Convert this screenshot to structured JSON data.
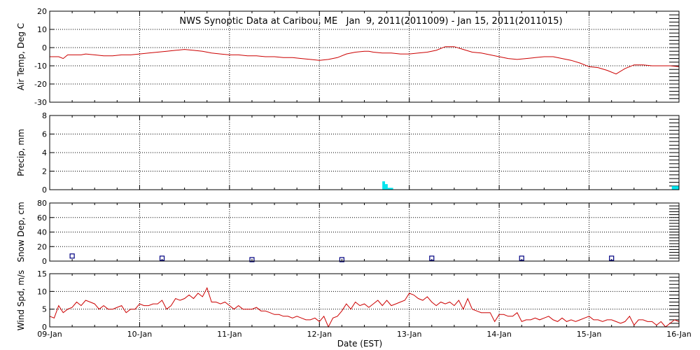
{
  "chart_data": {
    "type": "line",
    "title": "NWS Synoptic Data at Caribou, ME   Jan  9, 2011(2011009) - Jan 15, 2011(2011015)",
    "xlabel": "Date (EST)",
    "x_ticks": [
      "09-Jan",
      "10-Jan",
      "11-Jan",
      "12-Jan",
      "13-Jan",
      "14-Jan",
      "15-Jan",
      "16-Jan"
    ],
    "x_range_days": [
      0,
      7
    ],
    "grid": "dotted",
    "colors": {
      "line": "#cc0000",
      "precip": "#00e5ee",
      "snow": "#000080",
      "axes": "#000000"
    },
    "panels": [
      {
        "ylabel": "Air Temp, Deg C",
        "ylim": [
          -30,
          20
        ],
        "yticks": [
          "20",
          "10",
          "0",
          "-10",
          "-20",
          "-30"
        ],
        "kind": "line",
        "series": {
          "x": [
            0,
            0.1,
            0.15,
            0.2,
            0.25,
            0.3,
            0.35,
            0.4,
            0.5,
            0.6,
            0.7,
            0.8,
            0.9,
            1.0,
            1.1,
            1.2,
            1.3,
            1.4,
            1.5,
            1.6,
            1.7,
            1.75,
            1.8,
            1.9,
            2.0,
            2.1,
            2.2,
            2.3,
            2.4,
            2.5,
            2.6,
            2.7,
            2.8,
            2.9,
            3.0,
            3.1,
            3.2,
            3.3,
            3.4,
            3.5,
            3.55,
            3.6,
            3.7,
            3.8,
            3.9,
            4.0,
            4.1,
            4.2,
            4.3,
            4.4,
            4.5,
            4.6,
            4.7,
            4.8,
            4.9,
            5.0,
            5.1,
            5.2,
            5.3,
            5.4,
            5.5,
            5.6,
            5.7,
            5.8,
            5.9,
            6.0,
            6.1,
            6.2,
            6.3,
            6.4,
            6.5,
            6.6,
            6.7,
            6.8,
            6.9,
            7.0
          ],
          "values": [
            -5,
            -5,
            -6,
            -4,
            -4,
            -4,
            -4,
            -3.5,
            -4,
            -4.5,
            -4.5,
            -4,
            -4,
            -3.5,
            -3,
            -2.5,
            -2,
            -1.5,
            -1,
            -1.5,
            -2,
            -2.5,
            -3,
            -3.5,
            -4,
            -4,
            -4.5,
            -4.5,
            -5,
            -5,
            -5.5,
            -5.5,
            -6,
            -6.5,
            -7,
            -6.5,
            -5.5,
            -3.5,
            -2.5,
            -2,
            -2,
            -2.5,
            -3,
            -3,
            -3.5,
            -3.5,
            -3,
            -2.5,
            -1.5,
            0.5,
            0.5,
            -1,
            -2.5,
            -3,
            -4,
            -5,
            -6,
            -6.5,
            -6,
            -5.5,
            -5,
            -5,
            -6,
            -7,
            -8.5,
            -10.5,
            -11,
            -12.5,
            -14.5,
            -11.5,
            -9.5,
            -9.5,
            -10,
            -10,
            -10,
            -10.5
          ]
        }
      },
      {
        "ylabel": "Precip, mm",
        "ylim": [
          0,
          8
        ],
        "yticks": [
          "8",
          "6",
          "4",
          "2",
          "0"
        ],
        "kind": "bar",
        "bars": [
          {
            "x0": 3.7,
            "x1": 3.73,
            "value": 0.9
          },
          {
            "x0": 3.73,
            "x1": 3.76,
            "value": 0.6
          },
          {
            "x0": 3.76,
            "x1": 3.82,
            "value": 0.2
          },
          {
            "x0": 6.92,
            "x1": 7.0,
            "value": 0.4
          }
        ]
      },
      {
        "ylabel": "Snow Dep, cm",
        "ylim": [
          0,
          80
        ],
        "yticks": [
          "80",
          "60",
          "40",
          "20",
          "0"
        ],
        "kind": "scatter",
        "series": {
          "x": [
            0.25,
            1.25,
            2.25,
            3.25,
            4.25,
            5.25,
            6.25
          ],
          "values": [
            7,
            4,
            2,
            2,
            4,
            4,
            4
          ]
        }
      },
      {
        "ylabel": "Wind Spd, m/s",
        "ylim": [
          0,
          15
        ],
        "yticks": [
          "15",
          "10",
          "5",
          "0"
        ],
        "kind": "line",
        "series": {
          "x": [
            0,
            0.05,
            0.1,
            0.15,
            0.2,
            0.25,
            0.3,
            0.35,
            0.4,
            0.45,
            0.5,
            0.55,
            0.6,
            0.65,
            0.7,
            0.75,
            0.8,
            0.85,
            0.9,
            0.95,
            1.0,
            1.05,
            1.1,
            1.15,
            1.2,
            1.25,
            1.3,
            1.35,
            1.4,
            1.45,
            1.5,
            1.55,
            1.6,
            1.65,
            1.7,
            1.75,
            1.8,
            1.85,
            1.9,
            1.95,
            2.0,
            2.05,
            2.1,
            2.15,
            2.2,
            2.25,
            2.3,
            2.35,
            2.4,
            2.45,
            2.5,
            2.55,
            2.6,
            2.65,
            2.7,
            2.75,
            2.8,
            2.85,
            2.9,
            2.95,
            3.0,
            3.05,
            3.1,
            3.15,
            3.2,
            3.25,
            3.3,
            3.35,
            3.4,
            3.45,
            3.5,
            3.55,
            3.6,
            3.65,
            3.7,
            3.75,
            3.8,
            3.85,
            3.9,
            3.95,
            4.0,
            4.05,
            4.1,
            4.15,
            4.2,
            4.25,
            4.3,
            4.35,
            4.4,
            4.45,
            4.5,
            4.55,
            4.6,
            4.65,
            4.7,
            4.75,
            4.8,
            4.85,
            4.9,
            4.95,
            5.0,
            5.05,
            5.1,
            5.15,
            5.2,
            5.25,
            5.3,
            5.35,
            5.4,
            5.45,
            5.5,
            5.55,
            5.6,
            5.65,
            5.7,
            5.75,
            5.8,
            5.85,
            5.9,
            5.95,
            6.0,
            6.05,
            6.1,
            6.15,
            6.2,
            6.25,
            6.3,
            6.35,
            6.4,
            6.45,
            6.5,
            6.55,
            6.6,
            6.65,
            6.7,
            6.75,
            6.8,
            6.85,
            6.9,
            6.95,
            7.0
          ],
          "values": [
            3,
            2.5,
            6,
            4,
            5,
            5.5,
            7,
            6,
            7.5,
            7,
            6.5,
            5,
            6,
            5,
            5,
            5.5,
            6,
            4,
            5,
            5,
            6.5,
            6,
            6,
            6.5,
            6.5,
            7.5,
            5,
            6,
            8,
            7.5,
            8,
            9,
            8,
            9.5,
            8.5,
            11,
            7,
            7,
            6.5,
            7,
            6,
            5,
            6,
            5,
            5,
            5,
            5.5,
            4.5,
            4.5,
            4,
            3.5,
            3.5,
            3,
            3,
            2.5,
            3,
            2.5,
            2,
            2,
            2.5,
            1.5,
            3,
            0,
            2.5,
            3,
            4.5,
            6.5,
            5,
            7,
            6,
            6.5,
            5.5,
            6.5,
            7.5,
            6,
            7.5,
            6,
            6.5,
            7,
            7.5,
            9.5,
            9,
            8,
            7.5,
            8.5,
            7,
            6,
            7,
            6.5,
            7,
            6,
            7.5,
            5,
            8,
            5,
            4.5,
            4,
            4,
            4,
            1.5,
            3.5,
            3.5,
            3,
            3,
            4,
            1.5,
            2,
            2,
            2.5,
            2,
            2.5,
            3,
            2,
            1.5,
            2.5,
            1.5,
            2,
            1.5,
            2,
            2.5,
            3,
            2,
            2,
            1.5,
            2,
            2,
            1.5,
            1,
            1.5,
            3,
            0.5,
            2,
            2,
            1.5,
            1.5,
            0.5,
            1.5,
            0,
            1,
            2,
            1.5
          ]
        }
      }
    ]
  }
}
